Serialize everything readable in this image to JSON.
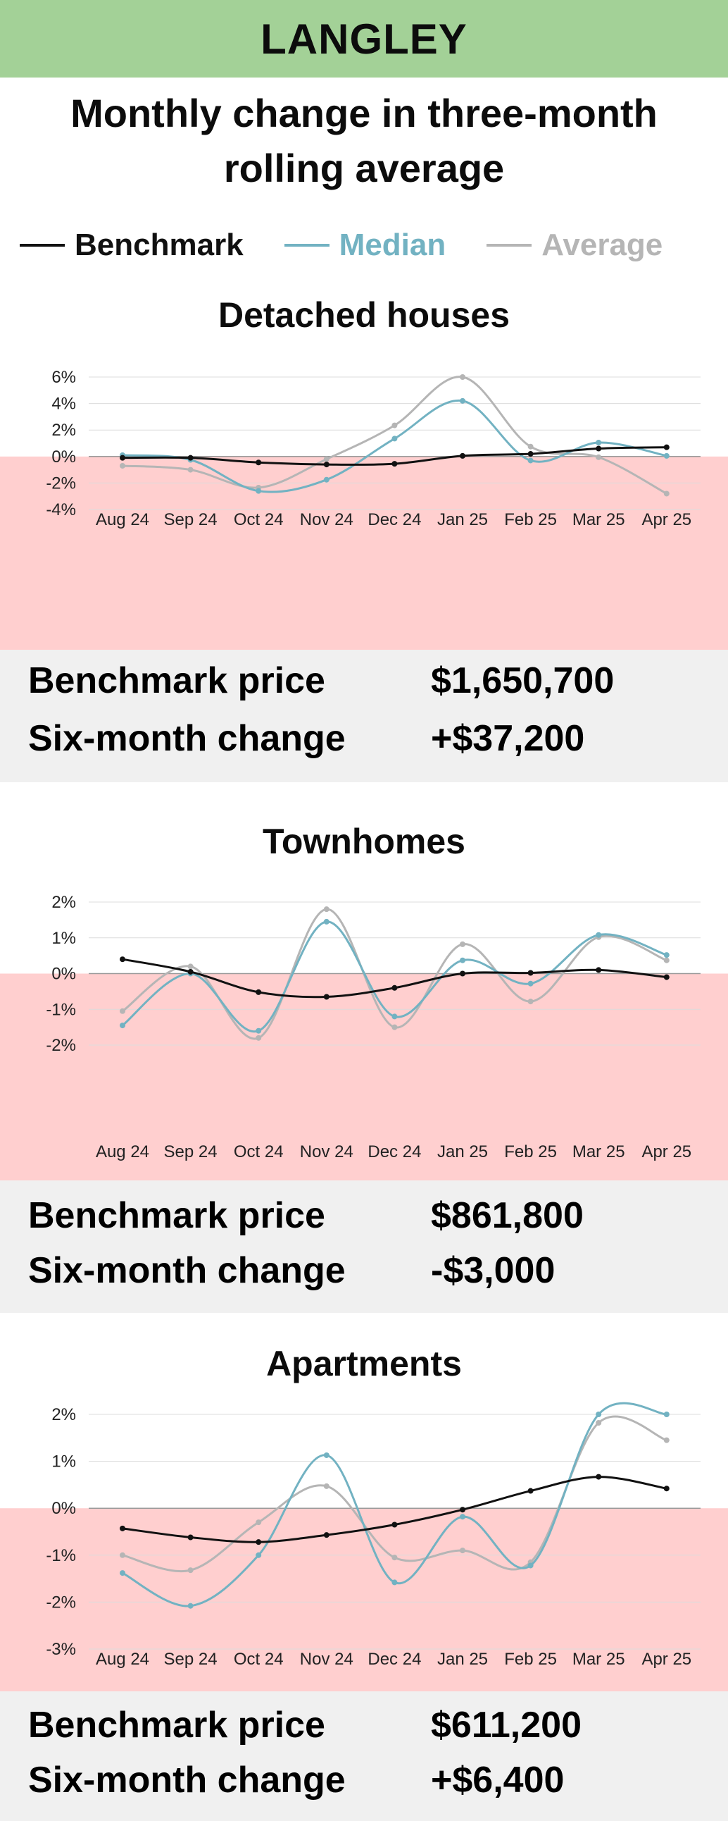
{
  "header": {
    "title": "LANGLEY",
    "subtitle_line1": "Monthly change in three-month",
    "subtitle_line2": "rolling average"
  },
  "legend": [
    {
      "label": "Benchmark",
      "color": "#111111"
    },
    {
      "label": "Median",
      "color": "#72b2c2"
    },
    {
      "label": "Average",
      "color": "#b5b5b5"
    }
  ],
  "colors": {
    "negative_band": "#ffcfcf",
    "info_bg": "#f0f0f0",
    "header_bg": "#a3d197"
  },
  "chart_data": [
    {
      "type": "line",
      "title": "Detached houses",
      "categories": [
        "Aug 24",
        "Sep 24",
        "Oct 24",
        "Nov 24",
        "Dec 24",
        "Jan 25",
        "Feb 25",
        "Mar 25",
        "Apr 25"
      ],
      "ylim": [
        -4,
        6
      ],
      "yticks": [
        6,
        4,
        2,
        0,
        -2,
        -4
      ],
      "tick_labels": [
        "6%",
        "4%",
        "2%",
        "0%",
        "-2%",
        "-4%"
      ],
      "series": [
        {
          "name": "Benchmark",
          "values": [
            -0.1,
            -0.1,
            -0.45,
            -0.6,
            -0.55,
            0.05,
            0.2,
            0.6,
            0.7
          ]
        },
        {
          "name": "Median",
          "values": [
            0.1,
            -0.25,
            -2.6,
            -1.75,
            1.35,
            4.2,
            -0.3,
            1.05,
            0.05
          ]
        },
        {
          "name": "Average",
          "values": [
            -0.7,
            -1.0,
            -2.35,
            -0.2,
            2.35,
            6.0,
            0.75,
            -0.05,
            -2.8
          ]
        }
      ],
      "benchmark_price_label": "Benchmark price",
      "benchmark_price": "$1,650,700",
      "change_label": "Six-month change",
      "change": "+$37,200"
    },
    {
      "type": "line",
      "title": "Townhomes",
      "categories": [
        "Aug 24",
        "Sep 24",
        "Oct 24",
        "Nov 24",
        "Dec 24",
        "Jan 25",
        "Feb 25",
        "Mar 25",
        "Apr 25"
      ],
      "ylim": [
        -2,
        2
      ],
      "yticks": [
        2,
        1,
        0,
        -1,
        -2
      ],
      "tick_labels": [
        "2%",
        "1%",
        "0%",
        "-1%",
        "-2%"
      ],
      "series": [
        {
          "name": "Benchmark",
          "values": [
            0.4,
            0.05,
            -0.52,
            -0.65,
            -0.4,
            0.0,
            0.02,
            0.1,
            -0.1
          ]
        },
        {
          "name": "Median",
          "values": [
            -1.45,
            0.0,
            -1.6,
            1.45,
            -1.2,
            0.37,
            -0.28,
            1.08,
            0.52
          ]
        },
        {
          "name": "Average",
          "values": [
            -1.05,
            0.2,
            -1.8,
            1.8,
            -1.5,
            0.82,
            -0.78,
            1.02,
            0.37
          ]
        }
      ],
      "benchmark_price_label": "Benchmark price",
      "benchmark_price": "$861,800",
      "change_label": "Six-month change",
      "change": "-$3,000"
    },
    {
      "type": "line",
      "title": "Apartments",
      "categories": [
        "Aug 24",
        "Sep 24",
        "Oct 24",
        "Nov 24",
        "Dec 24",
        "Jan 25",
        "Feb 25",
        "Mar 25",
        "Apr 25"
      ],
      "ylim": [
        -3,
        2
      ],
      "yticks": [
        2,
        1,
        0,
        -1,
        -2,
        -3
      ],
      "tick_labels": [
        "2%",
        "1%",
        "0%",
        "-1%",
        "-2%",
        "-3%"
      ],
      "series": [
        {
          "name": "Benchmark",
          "values": [
            -0.43,
            -0.62,
            -0.72,
            -0.57,
            -0.35,
            -0.03,
            0.37,
            0.67,
            0.42
          ]
        },
        {
          "name": "Median",
          "values": [
            -1.38,
            -2.08,
            -1.0,
            1.13,
            -1.58,
            -0.18,
            -1.22,
            2.0,
            2.0
          ]
        },
        {
          "name": "Average",
          "values": [
            -1.0,
            -1.32,
            -0.3,
            0.47,
            -1.05,
            -0.9,
            -1.15,
            1.82,
            1.45
          ]
        }
      ],
      "benchmark_price_label": "Benchmark price",
      "benchmark_price": "$611,200",
      "change_label": "Six-month change",
      "change": "+$6,400"
    }
  ]
}
